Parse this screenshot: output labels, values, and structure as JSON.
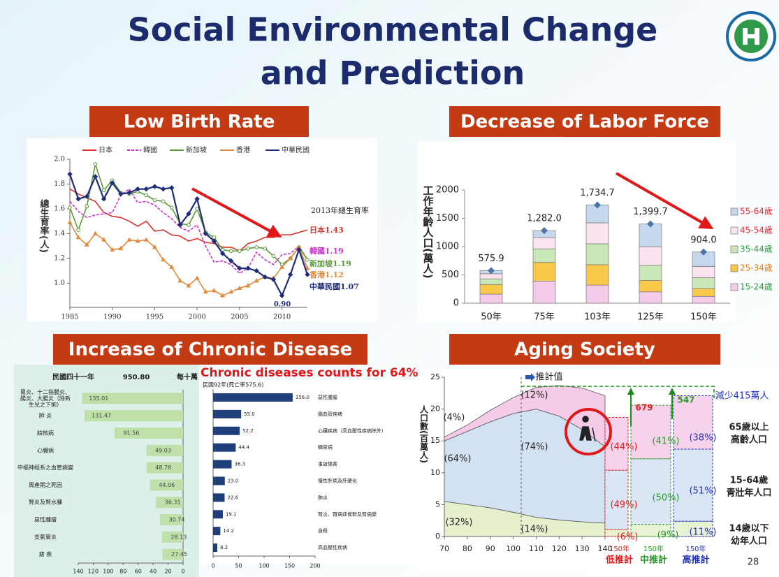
{
  "title_lines": [
    "Social Environmental Change",
    "and Prediction"
  ],
  "sections": [
    "Low Birth Rate",
    "Decrease of Labor Force",
    "Increase of Chronic Disease",
    "Aging Society"
  ],
  "page_number": "28",
  "chart_data": [
    {
      "type": "line",
      "ylabel": "總生育率(人)",
      "x": [
        1985,
        1986,
        1987,
        1988,
        1989,
        1990,
        1991,
        1992,
        1993,
        1994,
        1995,
        1996,
        1997,
        1998,
        1999,
        2000,
        2001,
        2002,
        2003,
        2004,
        2005,
        2006,
        2007,
        2008,
        2009,
        2010,
        2011,
        2012,
        2013
      ],
      "xlim": [
        1985,
        2013
      ],
      "xticks": [
        1985,
        1990,
        1995,
        2000,
        2005,
        2010
      ],
      "ylim": [
        0.85,
        2.0
      ],
      "yticks": [
        {
          "value": 1,
          "label": "1.0"
        },
        1.2,
        1.4,
        1.6,
        1.8,
        {
          "value": 2,
          "label": "2.0"
        }
      ],
      "series": [
        {
          "name": "日本",
          "color": "#d9342b",
          "marker": "none",
          "dash": false,
          "end_label": "日本1.43",
          "values": [
            1.76,
            1.72,
            1.69,
            1.66,
            1.57,
            1.54,
            1.53,
            1.5,
            1.46,
            1.5,
            1.42,
            1.43,
            1.39,
            1.38,
            1.34,
            1.36,
            1.33,
            1.32,
            1.29,
            1.29,
            1.26,
            1.32,
            1.34,
            1.37,
            1.37,
            1.39,
            1.39,
            1.41,
            1.43
          ]
        },
        {
          "name": "韓國",
          "color": "#cc33cc",
          "marker": "none",
          "dash": true,
          "end_label": "韓國1.19",
          "values": [
            1.66,
            1.58,
            1.53,
            1.55,
            1.56,
            1.57,
            1.71,
            1.76,
            1.65,
            1.66,
            1.63,
            1.57,
            1.52,
            1.45,
            1.42,
            1.47,
            1.3,
            1.17,
            1.18,
            1.15,
            1.08,
            1.12,
            1.25,
            1.19,
            1.15,
            1.23,
            1.24,
            1.3,
            1.19
          ]
        },
        {
          "name": "新加坡",
          "color": "#5a9a3a",
          "marker": "circle",
          "dash": false,
          "end_label": "新加坡1.19",
          "values": [
            1.61,
            1.43,
            1.62,
            1.96,
            1.75,
            1.83,
            1.73,
            1.72,
            1.74,
            1.71,
            1.67,
            1.66,
            1.61,
            1.48,
            1.47,
            1.6,
            1.41,
            1.37,
            1.27,
            1.26,
            1.26,
            1.28,
            1.29,
            1.28,
            1.22,
            1.15,
            1.2,
            1.29,
            1.19
          ]
        },
        {
          "name": "香港",
          "color": "#e08a3c",
          "marker": "triangle",
          "dash": false,
          "end_label": "香港1.12",
          "values": [
            1.49,
            1.37,
            1.31,
            1.4,
            1.35,
            1.27,
            1.28,
            1.35,
            1.34,
            1.35,
            1.29,
            1.19,
            1.13,
            1.02,
            0.98,
            1.04,
            0.93,
            0.94,
            0.9,
            0.93,
            0.96,
            0.98,
            1.02,
            1.05,
            1.04,
            1.13,
            1.2,
            1.29,
            1.12
          ]
        },
        {
          "name": "中華民國",
          "color": "#1f2d7a",
          "marker": "diamond",
          "dash": false,
          "end_label": "中華民國1.07",
          "values": [
            1.88,
            1.68,
            1.7,
            1.86,
            1.68,
            1.81,
            1.72,
            1.73,
            1.76,
            1.76,
            1.78,
            1.76,
            1.77,
            1.47,
            1.56,
            1.68,
            1.4,
            1.34,
            1.24,
            1.18,
            1.12,
            1.12,
            1.1,
            1.05,
            1.03,
            0.9,
            1.07,
            1.27,
            1.07
          ]
        }
      ],
      "annotations": [
        "2013年總生育率",
        "0.90"
      ]
    },
    {
      "type": "bar",
      "stacked": true,
      "ylabel": "工作年齡人口(萬人)",
      "categories": [
        "50年",
        "75年",
        "103年",
        "125年",
        "150年"
      ],
      "ylim": [
        0,
        2000
      ],
      "yticks": [
        0,
        500,
        1000,
        1500,
        2000
      ],
      "series": [
        {
          "name": "15-24歲",
          "color": "#f4cbe8",
          "label_color": "#2e9e3e",
          "values": [
            160,
            390,
            320,
            200,
            120
          ]
        },
        {
          "name": "25-34歲",
          "color": "#f8c94a",
          "label_color": "#e07a10",
          "values": [
            170,
            330,
            360,
            200,
            140
          ]
        },
        {
          "name": "35-44歲",
          "color": "#c9e8b8",
          "label_color": "#2e9e3e",
          "values": [
            100,
            240,
            370,
            270,
            190
          ]
        },
        {
          "name": "45-54歲",
          "color": "#fbe3ef",
          "label_color": "#e0303a",
          "values": [
            90,
            200,
            370,
            330,
            200
          ]
        },
        {
          "name": "55-64歲",
          "color": "#c6d8ee",
          "label_color": "#e0303a",
          "values": [
            55.9,
            122,
            314.7,
            399.7,
            254
          ]
        }
      ],
      "totals": [
        575.9,
        1282,
        1734.7,
        1399.7,
        904
      ],
      "total_labels": [
        "575.9",
        "1,282.0",
        "1,734.7",
        "1,399.7",
        "904.0"
      ],
      "total_color": "#4a76a8"
    },
    {
      "type": "bar",
      "orientation": "horizontal",
      "header": [
        "民國四十一年",
        "950.80",
        "每十萬"
      ],
      "categories": [
        [
          "胃炎、十二指腸炎、",
          "腸炎、大腸炎（除新",
          "生兒之下痢）"
        ],
        "肺 炎",
        "結核病",
        "心臟病",
        "中樞神經系之血管病變",
        "周產期之死因",
        "腎炎及腎水腫",
        "惡性腫瘤",
        "支氣管炎",
        "瘧 疾"
      ],
      "values": [
        135.01,
        131.47,
        91.56,
        49.03,
        48.78,
        44.06,
        36.31,
        30.74,
        28.13,
        27.45
      ],
      "color": "#bfe0a8",
      "xlim": [
        140,
        0
      ],
      "xticks": [
        140,
        120,
        100,
        80,
        60,
        40,
        20,
        0
      ]
    },
    {
      "type": "bar",
      "orientation": "horizontal",
      "title": "民國92年(死亡率575.6)",
      "annotation": "Chronic diseases counts for 64%",
      "categories": [
        "惡性腫瘤",
        "腦血管疾病",
        "心臟疾病（高血壓性疾病除外）",
        "糖尿病",
        "事故傷害",
        "慢性肝病及肝硬化",
        "肺炎",
        "腎炎、腎病症候群及腎病變",
        "自殺",
        "高血壓性疾病"
      ],
      "values": [
        156,
        55,
        52.2,
        44.4,
        36.3,
        23,
        22.6,
        19.1,
        14.2,
        8.2
      ],
      "value_labels": [
        "156.0",
        "55.0",
        "52.2",
        "44.4",
        "36.3",
        "23.0",
        "22.6",
        "19.1",
        "14.2",
        "8.2"
      ],
      "color": "#1f3f7a",
      "xlim": [
        0,
        200
      ],
      "xticks": [
        0,
        50,
        100,
        150,
        200
      ]
    },
    {
      "type": "area",
      "stacked": true,
      "ylabel": "人口數(百萬人)",
      "x": [
        70,
        80,
        90,
        100,
        110,
        120,
        130,
        140
      ],
      "xlim": [
        70,
        140
      ],
      "xticks": [
        70,
        80,
        90,
        100,
        110,
        120,
        130,
        140
      ],
      "ylim": [
        0,
        25
      ],
      "yticks": [
        0,
        5,
        10,
        15,
        20,
        25
      ],
      "series": [
        {
          "name": "14歲以下",
          "name_line2": "幼年人口",
          "color": "#e4f1cc",
          "values": [
            5.5,
            5,
            4.5,
            3.8,
            3,
            2.6,
            2.3,
            2.1
          ]
        },
        {
          "name": "15-64歲",
          "name_line2": "青壯年人口",
          "color": "#d3e2f3",
          "values": [
            9.5,
            11.5,
            13.5,
            15.5,
            17,
            16.3,
            14.5,
            12
          ]
        },
        {
          "name": "65歲以上",
          "name_line2": "高齡人口",
          "color": "#f6cbe7",
          "values": [
            0.6,
            1,
            1.8,
            2.5,
            3.4,
            4.8,
            6.5,
            8
          ]
        }
      ],
      "projections": [
        {
          "year": "150年",
          "label": "低推計",
          "color": "#e02020",
          "values": [
            1.1,
            9.3,
            8.3
          ]
        },
        {
          "year": "150年",
          "label": "中推計",
          "color": "#2a9a2a",
          "values": [
            1.9,
            10.3,
            8.4
          ]
        },
        {
          "year": "150年",
          "label": "高推計",
          "color": "#2030c0",
          "values": [
            2.4,
            11.3,
            8.4
          ]
        }
      ],
      "annotations": [
        "(4%)",
        "(64%)",
        "(32%)",
        "(12%)",
        "(74%)",
        "(14%)",
        "(44%)",
        "(49%)",
        "(6%)",
        "(41%)",
        "(50%)",
        "(9%)",
        "(38%)",
        "(51%)",
        "(11%)",
        "679",
        "547",
        "減少415萬人",
        "推計值"
      ]
    }
  ]
}
